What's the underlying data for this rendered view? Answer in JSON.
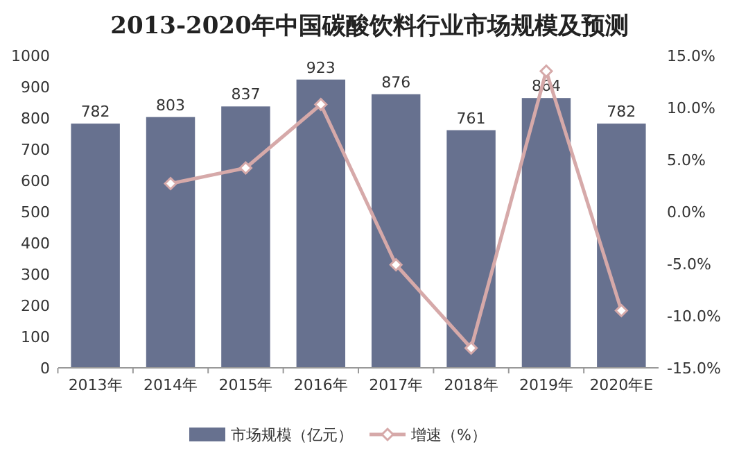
{
  "chart_data": {
    "type": "bar",
    "title": "2013-2020年中国碳酸饮料行业市场规模及预测",
    "categories": [
      "2013年",
      "2014年",
      "2015年",
      "2016年",
      "2017年",
      "2018年",
      "2019年",
      "2020年E"
    ],
    "series": [
      {
        "name": "市场规模（亿元）",
        "color": "#67718f",
        "values": [
          782,
          803,
          837,
          923,
          876,
          761,
          864,
          782
        ],
        "value_labels": [
          "782",
          "803",
          "837",
          "923",
          "876",
          "761",
          "864",
          "782"
        ]
      },
      {
        "name": "增速（%）",
        "type": "line",
        "axis": "y2",
        "color": "#d6a9a9",
        "marker": "diamond",
        "values": [
          null,
          2.7,
          4.2,
          10.3,
          -5.1,
          -13.1,
          13.5,
          -9.5
        ]
      }
    ],
    "ylim": [
      0,
      1000
    ],
    "yticks": [
      0,
      100,
      200,
      300,
      400,
      500,
      600,
      700,
      800,
      900,
      1000
    ],
    "y2lim": [
      -15,
      15
    ],
    "y2ticks": [
      {
        "value": -15,
        "label": "-15.0%"
      },
      {
        "value": -10,
        "label": "-10.0%"
      },
      {
        "value": -5,
        "label": "-5.0%"
      },
      {
        "value": 0,
        "label": "0.0%"
      },
      {
        "value": 5,
        "label": "5.0%"
      },
      {
        "value": 10,
        "label": "10.0%"
      },
      {
        "value": 15,
        "label": "15.0%"
      }
    ],
    "legend": "bottom"
  }
}
